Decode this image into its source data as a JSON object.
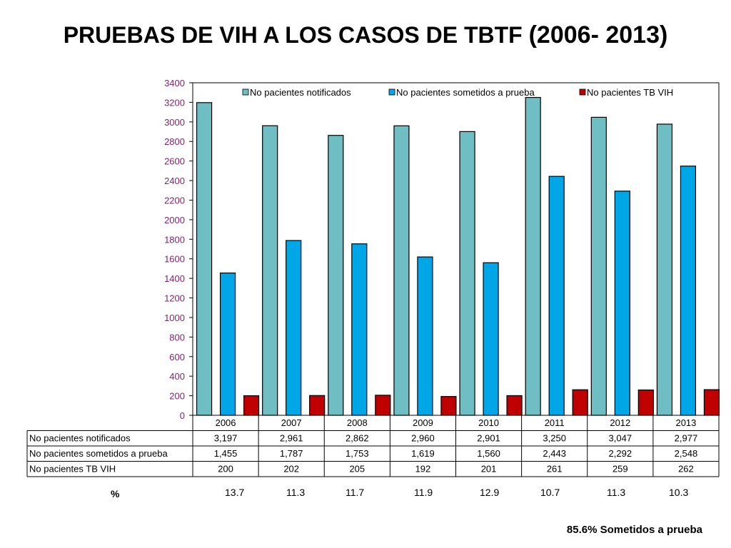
{
  "title_main": "PRUEBAS DE VIH A LOS CASOS DE TBTF ",
  "title_years": "(2006- 2013)",
  "chart_data": {
    "type": "bar",
    "title": "PRUEBAS DE VIH A LOS CASOS DE TBTF (2006- 2013)",
    "categories": [
      "2006",
      "2007",
      "2008",
      "2009",
      "2010",
      "2011",
      "2012",
      "2013"
    ],
    "series": [
      {
        "name": "No pacientes notificados",
        "color": "#6fbec3",
        "values": [
          3197,
          2961,
          2862,
          2960,
          2901,
          3250,
          3047,
          2977
        ],
        "labels": [
          "3,197",
          "2,961",
          "2,862",
          "2,960",
          "2,901",
          "3,250",
          "3,047",
          "2,977"
        ]
      },
      {
        "name": "No pacientes sometidos a prueba",
        "color": "#00a6e6",
        "values": [
          1455,
          1787,
          1753,
          1619,
          1560,
          2443,
          2292,
          2548
        ],
        "labels": [
          "1,455",
          "1,787",
          "1,753",
          "1,619",
          "1,560",
          "2,443",
          "2,292",
          "2,548"
        ]
      },
      {
        "name": "No pacientes TB VIH",
        "color": "#c00000",
        "values": [
          200,
          202,
          205,
          192,
          201,
          261,
          259,
          262
        ],
        "labels": [
          "200",
          "202",
          "205",
          "192",
          "201",
          "261",
          "259",
          "262"
        ]
      }
    ],
    "ylim": [
      0,
      3400
    ],
    "yticks": [
      0,
      200,
      400,
      600,
      800,
      1000,
      1200,
      1400,
      1600,
      1800,
      2000,
      2200,
      2400,
      2600,
      2800,
      3000,
      3200,
      3400
    ],
    "legend_position": "top",
    "axis_color": "#7f1f6f"
  },
  "percent_label": "%",
  "percent_values": [
    "13.7",
    "11.3",
    "11.7",
    "11.9",
    "12.9",
    "10.7",
    "11.3",
    "10.3"
  ],
  "footer_note": "85.6% Sometidos a prueba"
}
